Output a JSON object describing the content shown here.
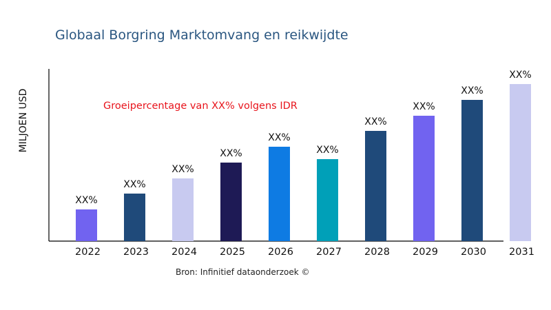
{
  "chart_data": {
    "type": "bar",
    "title": "Globaal Borgring Marktomvang en reikwijdte",
    "xlabel": "",
    "ylabel": "MILJOEN USD",
    "categories": [
      "2022",
      "2023",
      "2024",
      "2025",
      "2026",
      "2027",
      "2028",
      "2029",
      "2030",
      "2031"
    ],
    "values": [
      46,
      69,
      91,
      114,
      137,
      119,
      160,
      182,
      205,
      228
    ],
    "data_labels": [
      "XX%",
      "XX%",
      "XX%",
      "XX%",
      "XX%",
      "XX%",
      "XX%",
      "XX%",
      "XX%",
      "XX%"
    ],
    "colors": [
      "#7163f0",
      "#1f4a7a",
      "#c8caf0",
      "#1e1a55",
      "#0e7be3",
      "#00a0b8",
      "#1f4a7a",
      "#7163f0",
      "#1f4a7a",
      "#c8caf0"
    ],
    "ylim": [
      0,
      250
    ],
    "grid": false,
    "annotation": "Groeipercentage van XX% volgens IDR",
    "source": "Bron: Infinitief dataonderzoek ©"
  }
}
